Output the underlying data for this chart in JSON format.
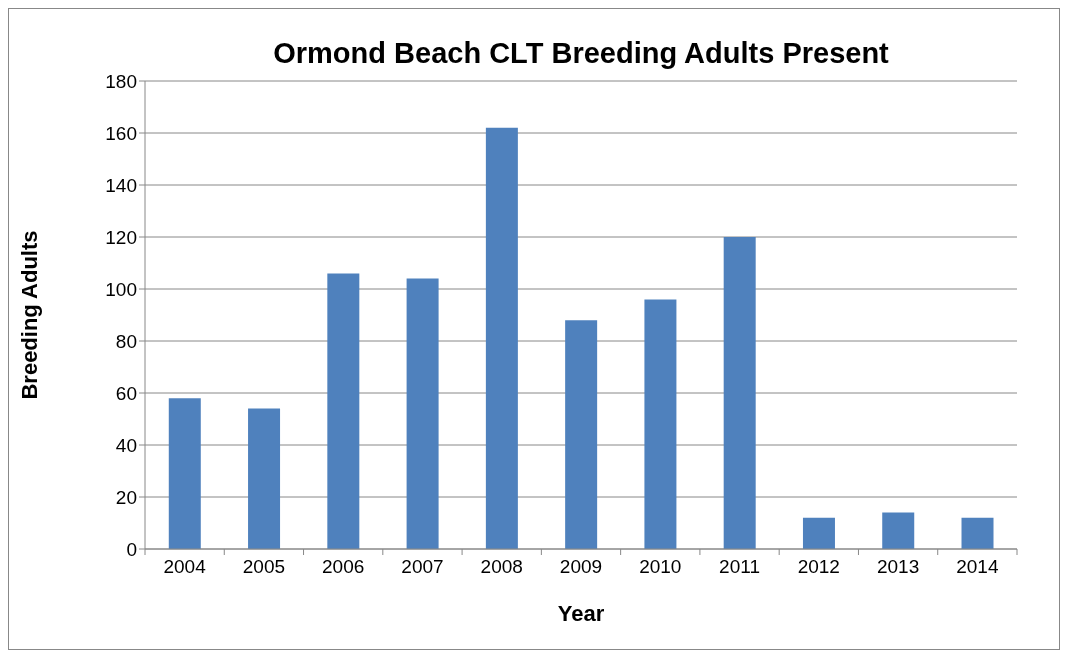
{
  "chart_data": {
    "type": "bar",
    "title": "Ormond Beach CLT Breeding Adults Present",
    "xlabel": "Year",
    "ylabel": "Breeding Adults",
    "categories": [
      "2004",
      "2005",
      "2006",
      "2007",
      "2008",
      "2009",
      "2010",
      "2011",
      "2012",
      "2013",
      "2014"
    ],
    "values": [
      58,
      54,
      106,
      104,
      162,
      88,
      96,
      120,
      12,
      14,
      12
    ],
    "color": "#4f81bd",
    "ylim": [
      0,
      180
    ],
    "yticks": [
      0,
      20,
      40,
      60,
      80,
      100,
      120,
      140,
      160,
      180
    ],
    "grid": "y"
  }
}
